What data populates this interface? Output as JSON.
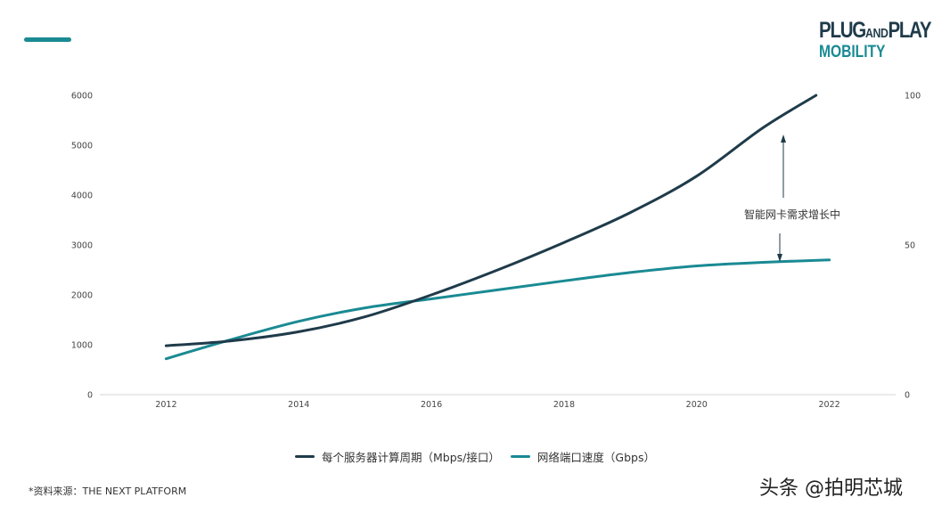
{
  "logo": {
    "line1_a": "PLUG",
    "line1_b": "AND",
    "line1_c": "PLAY",
    "line2": "MOBILITY"
  },
  "colors": {
    "accent": "#1a8a93",
    "dark": "#1f3b4a"
  },
  "chart_data": {
    "type": "line",
    "title": "",
    "xlabel": "",
    "ylabel": "",
    "x_ticks": [
      "2012",
      "2014",
      "2016",
      "2018",
      "2020",
      "2022"
    ],
    "y_left_ticks": [
      "0",
      "1000",
      "2000",
      "3000",
      "4000",
      "5000",
      "6000"
    ],
    "y_right_ticks": [
      "0",
      "50",
      "100"
    ],
    "xlim": [
      2011,
      2023
    ],
    "ylim_left": [
      0,
      6000
    ],
    "ylim_right": [
      0,
      100
    ],
    "grid": false,
    "legend_position": "bottom",
    "series": [
      {
        "name": "每个服务器计算周期（Mbps/接口）",
        "axis": "left",
        "color": "#1f3b4a",
        "x": [
          2012,
          2013,
          2014,
          2015,
          2016,
          2017,
          2018,
          2019,
          2020,
          2021,
          2021.8
        ],
        "values": [
          980,
          1080,
          1260,
          1560,
          2000,
          2500,
          3050,
          3650,
          4380,
          5350,
          6000
        ]
      },
      {
        "name": "网络端口速度（Gbps）",
        "axis": "right",
        "color": "#1a8a93",
        "x": [
          2012,
          2013,
          2014,
          2015,
          2016,
          2017,
          2018,
          2019,
          2020,
          2021,
          2022
        ],
        "values": [
          12,
          18.5,
          24.5,
          29,
          32,
          35,
          38,
          40.8,
          43,
          44.2,
          45
        ]
      }
    ],
    "annotation": {
      "text": "智能网卡需求增长中"
    }
  },
  "source": "*资料来源：THE NEXT PLATFORM",
  "watermark": "头条 @拍明芯城"
}
